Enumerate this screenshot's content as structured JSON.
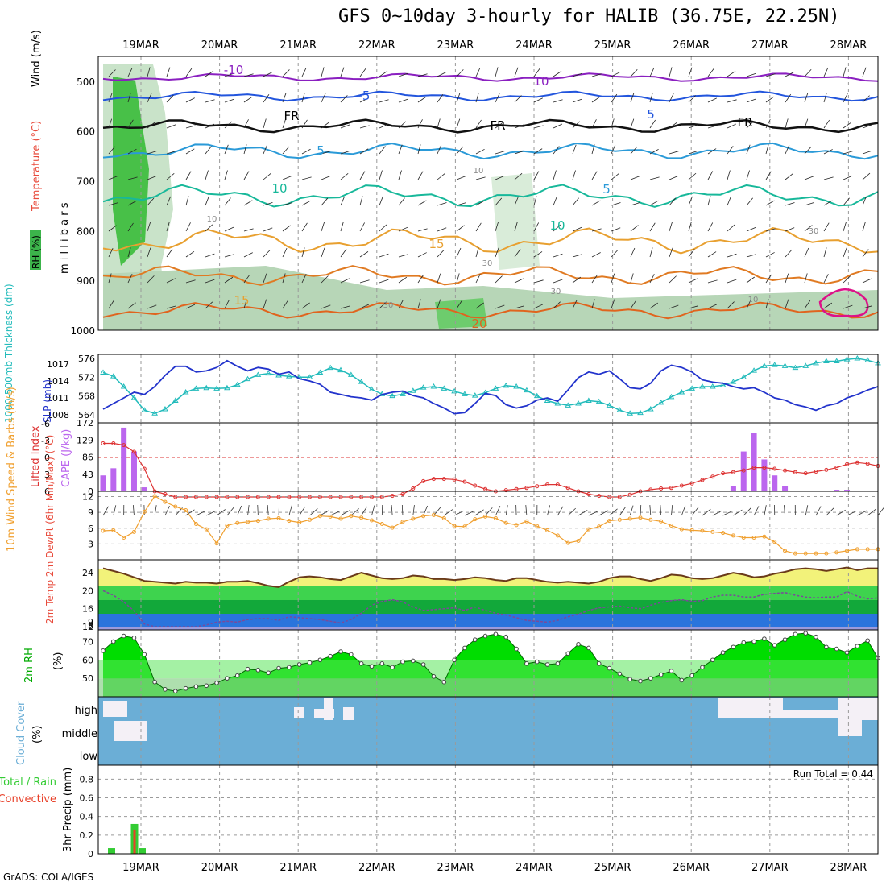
{
  "title": "GFS 0~10day 3-hourly for HALIB (36.75E, 22.25N)",
  "credit": "GrADS: COLA/IGES",
  "dates": [
    "19MAR",
    "20MAR",
    "21MAR",
    "22MAR",
    "23MAR",
    "24MAR",
    "25MAR",
    "26MAR",
    "27MAR",
    "28MAR"
  ],
  "colors": {
    "sounding_rh": "#3cb44b",
    "temp_labels": "#e84b3c",
    "thick_color": "#22bbbb",
    "slp_color": "#2233cc",
    "li_color": "#dd3333",
    "cape_color": "#bb66ee",
    "wind_color": "#f0a030",
    "rh_green": "#00dd00",
    "cloud_blue": "#6baed6",
    "precip_green": "#33cc33",
    "precip_red": "#e8412a"
  },
  "chart_data": [
    {
      "type": "contour",
      "panel": "upper-air",
      "ylabel": "millibars",
      "legend_text": {
        "rh": "RH (%)",
        "temp": "Temperature (°C)",
        "wind": "Wind (m/s)"
      },
      "yticks": [
        500,
        600,
        700,
        800,
        900,
        1000
      ],
      "ylim": [
        1000,
        450
      ],
      "temperature_labels": [
        "-10",
        "10",
        "-5",
        "5",
        "FR",
        "FR",
        "FR",
        "5",
        "5",
        "10",
        "10",
        "15",
        "15",
        "20"
      ],
      "rh_labels": [
        "10",
        "10",
        "30",
        "30",
        "30",
        "30",
        "10"
      ]
    },
    {
      "type": "line",
      "panel": "thickness-slp",
      "ylabel_left": "1000-500mb Thickness (dm)",
      "ylabel_right": "SLP (mb)",
      "yticks_left": [
        564,
        568,
        572,
        576
      ],
      "yticks_right": [
        1008,
        1011,
        1014,
        1017
      ],
      "series": [
        {
          "name": "1000-500mb Thickness (dm)",
          "values": [
            573.0,
            572.2,
            570.0,
            567.6,
            565.0,
            564.3,
            565.2,
            567.0,
            568.8,
            569.6,
            569.7,
            569.6,
            569.7,
            570.4,
            571.6,
            572.5,
            572.8,
            572.4,
            572.2,
            572.0,
            572.0,
            573.0,
            574.0,
            573.5,
            572.5,
            571.0,
            569.4,
            568.4,
            568.0,
            568.4,
            569.1,
            569.8,
            570.0,
            569.6,
            569.0,
            568.4,
            568.1,
            568.7,
            569.6,
            570.2,
            570.0,
            569.2,
            568.0,
            567.0,
            566.4,
            566.0,
            566.4,
            567.0,
            566.8,
            566.0,
            565.0,
            564.3,
            564.4,
            565.2,
            566.6,
            567.8,
            568.8,
            569.6,
            570.0,
            570.0,
            570.3,
            571.0,
            572.0,
            573.4,
            574.4,
            574.6,
            574.4,
            574.0,
            574.4,
            575.0,
            575.4,
            575.4,
            575.8,
            576.0,
            575.6,
            575.0
          ]
        },
        {
          "name": "SLP (mb)",
          "values": [
            1009.0,
            1010.0,
            1011.0,
            1012.0,
            1011.6,
            1013.0,
            1015.0,
            1016.6,
            1016.6,
            1015.6,
            1015.8,
            1016.4,
            1017.6,
            1016.6,
            1015.8,
            1016.4,
            1016.1,
            1015.2,
            1015.6,
            1014.4,
            1014.0,
            1013.4,
            1012.0,
            1011.6,
            1011.2,
            1011.0,
            1010.6,
            1011.6,
            1012.0,
            1012.2,
            1011.4,
            1011.0,
            1010.0,
            1009.2,
            1008.2,
            1008.4,
            1010.0,
            1011.8,
            1011.4,
            1009.8,
            1009.2,
            1009.6,
            1010.6,
            1011.0,
            1010.4,
            1012.4,
            1014.6,
            1015.6,
            1015.2,
            1015.8,
            1014.4,
            1012.8,
            1012.6,
            1013.6,
            1015.8,
            1016.8,
            1016.4,
            1015.6,
            1014.2,
            1013.8,
            1013.6,
            1013.0,
            1012.6,
            1012.8,
            1012.0,
            1011.0,
            1010.6,
            1009.8,
            1009.4,
            1008.8,
            1009.6,
            1010.0,
            1011.0,
            1011.6,
            1012.4,
            1013.0
          ]
        }
      ]
    },
    {
      "type": "bar-line",
      "panel": "cape-lifted-index",
      "ylabel_left": "Lifted Index",
      "ylabel_right": "CAPE (J/kg)",
      "yticks_left": [
        -6,
        -3,
        0,
        3,
        6
      ],
      "yticks_right": [
        0,
        43,
        86,
        129,
        172
      ],
      "cape": [
        40,
        58,
        160,
        100,
        10,
        0,
        0,
        0,
        0,
        0,
        0,
        0,
        0,
        0,
        0,
        0,
        0,
        0,
        0,
        0,
        0,
        0,
        0,
        0,
        0,
        0,
        0,
        0,
        0,
        0,
        0,
        0,
        0,
        0,
        0,
        0,
        0,
        0,
        0,
        0,
        0,
        0,
        0,
        0,
        0,
        0,
        0,
        0,
        0,
        0,
        0,
        0,
        0,
        0,
        0,
        0,
        0,
        0,
        0,
        0,
        0,
        14,
        100,
        146,
        80,
        40,
        14,
        0,
        0,
        0,
        0,
        4,
        4,
        0,
        0,
        0
      ],
      "lifted_index": [
        -2.5,
        -2.5,
        -2.2,
        -1.0,
        2.0,
        6.0,
        6.5,
        7.0,
        7.0,
        7.0,
        7.0,
        7.0,
        7.0,
        7.0,
        7.0,
        7.0,
        7.0,
        7.0,
        7.0,
        7.0,
        7.0,
        7.0,
        7.0,
        7.0,
        7.0,
        7.0,
        7.0,
        7.0,
        6.8,
        6.5,
        5.5,
        4.2,
        3.8,
        3.8,
        3.9,
        4.3,
        5.0,
        5.6,
        6.0,
        5.8,
        5.6,
        5.4,
        5.1,
        4.8,
        4.8,
        5.4,
        6.0,
        6.5,
        6.8,
        7.0,
        7.0,
        6.6,
        6.0,
        5.7,
        5.5,
        5.4,
        5.0,
        4.6,
        4.0,
        3.4,
        2.8,
        2.6,
        2.3,
        1.8,
        1.8,
        2.0,
        2.3,
        2.6,
        2.8,
        2.5,
        2.2,
        1.8,
        1.2,
        0.9,
        1.1,
        1.5
      ]
    },
    {
      "type": "line",
      "panel": "10m-wind",
      "ylabel": "10m Wind Speed & Barbs (m/s)",
      "yticks": [
        3,
        6,
        9,
        12
      ],
      "series": [
        {
          "name": "10m Wind Speed",
          "values": [
            5.5,
            5.6,
            4.2,
            5.3,
            9.1,
            12.1,
            11.0,
            10.1,
            9.4,
            6.8,
            5.8,
            3.1,
            6.5,
            7.0,
            7.2,
            7.4,
            7.8,
            7.9,
            7.4,
            7.1,
            7.6,
            8.3,
            8.2,
            7.8,
            8.3,
            8.0,
            7.5,
            6.8,
            6.1,
            7.2,
            7.8,
            8.3,
            8.5,
            7.9,
            6.4,
            6.3,
            7.7,
            8.2,
            7.9,
            7.0,
            6.6,
            7.3,
            6.4,
            5.6,
            4.6,
            3.2,
            3.6,
            5.8,
            6.3,
            7.4,
            7.6,
            7.8,
            8.0,
            7.6,
            7.3,
            6.5,
            5.8,
            5.6,
            5.5,
            5.3,
            5.1,
            4.6,
            4.2,
            4.2,
            4.4,
            3.4,
            1.7,
            1.2,
            1.2,
            1.2,
            1.2,
            1.4,
            1.7,
            2.0,
            2.0,
            2.0
          ]
        }
      ]
    },
    {
      "type": "line",
      "panel": "2m-temp",
      "ylabel": "2m Temp 2m DewPt (6hr Min/Max) (°C)",
      "yticks": [
        8,
        9,
        12,
        16,
        20,
        24
      ],
      "series": [
        {
          "name": "2m Temp",
          "values": [
            25.0,
            24.4,
            23.8,
            23.0,
            22.2,
            22.0,
            21.8,
            21.6,
            22.0,
            21.8,
            21.8,
            21.6,
            22.0,
            22.0,
            22.2,
            21.7,
            21.1,
            20.8,
            22.0,
            23.0,
            23.2,
            23.0,
            22.6,
            22.4,
            23.2,
            24.0,
            23.4,
            22.8,
            22.6,
            22.8,
            23.4,
            23.2,
            22.6,
            22.6,
            22.4,
            22.6,
            23.0,
            22.8,
            22.4,
            22.2,
            22.8,
            22.8,
            22.4,
            22.0,
            21.8,
            22.0,
            21.8,
            21.6,
            22.0,
            22.8,
            23.2,
            23.2,
            22.6,
            22.2,
            22.8,
            23.6,
            23.4,
            22.8,
            22.6,
            22.8,
            23.4,
            24.0,
            23.6,
            23.0,
            23.2,
            23.8,
            24.2,
            24.8,
            25.0,
            24.8,
            24.4,
            24.8,
            25.2,
            24.6,
            25.0,
            25.0
          ]
        },
        {
          "name": "2m DewPt",
          "values": [
            20.0,
            19.0,
            17.5,
            15.5,
            12.6,
            11.5,
            11.2,
            11.0,
            11.6,
            12.0,
            12.4,
            13.0,
            13.2,
            13.0,
            13.6,
            13.8,
            13.8,
            13.4,
            14.2,
            14.0,
            13.8,
            13.6,
            13.2,
            12.8,
            13.6,
            15.0,
            16.8,
            17.6,
            18.0,
            17.5,
            16.4,
            15.6,
            15.8,
            16.0,
            16.2,
            15.6,
            16.4,
            15.6,
            15.0,
            14.6,
            14.0,
            13.4,
            13.2,
            13.0,
            13.4,
            14.2,
            14.8,
            15.6,
            16.2,
            16.4,
            16.6,
            16.2,
            16.0,
            16.8,
            17.4,
            17.8,
            18.0,
            17.6,
            17.8,
            18.6,
            19.0,
            19.0,
            18.6,
            18.6,
            19.2,
            19.4,
            19.6,
            19.0,
            18.6,
            18.4,
            18.6,
            18.6,
            19.8,
            18.8,
            18.2,
            18.4
          ]
        }
      ]
    },
    {
      "type": "area",
      "panel": "2m-rh",
      "ylabel": "2m RH (%)",
      "yticks": [
        50,
        60,
        70
      ],
      "series": [
        {
          "name": "2m RH",
          "values": [
            65.0,
            70.0,
            73.0,
            72.0,
            63.0,
            48.0,
            44.0,
            43.0,
            44.5,
            45.5,
            46.0,
            47.5,
            50.0,
            51.5,
            55.0,
            54.5,
            53.0,
            55.5,
            56.0,
            57.5,
            58.5,
            60.0,
            62.0,
            64.5,
            63.0,
            58.0,
            56.5,
            58.0,
            56.0,
            59.0,
            59.5,
            57.5,
            51.0,
            48.0,
            60.0,
            66.5,
            71.0,
            73.0,
            74.0,
            72.5,
            66.0,
            58.0,
            59.0,
            57.5,
            58.0,
            63.5,
            68.5,
            66.5,
            58.0,
            55.5,
            52.5,
            49.5,
            48.5,
            50.0,
            52.0,
            54.0,
            49.0,
            51.5,
            56.0,
            60.0,
            64.0,
            67.0,
            69.5,
            70.0,
            71.5,
            68.0,
            71.0,
            74.0,
            74.5,
            72.5,
            67.0,
            66.0,
            64.0,
            67.5,
            70.5,
            61.0
          ]
        }
      ]
    },
    {
      "type": "heatmap",
      "panel": "cloud-cover",
      "ylabel": "Cloud Cover (%)",
      "rows": [
        "high",
        "middle",
        "low"
      ]
    },
    {
      "type": "bar",
      "panel": "precip",
      "ylabel": "3hr Precip (mm)",
      "legend": [
        "Total / Rain",
        "Convective"
      ],
      "annotation": "Run Total = 0.44",
      "yticks": [
        0,
        0.2,
        0.4,
        0.6,
        0.8
      ],
      "bars": [
        {
          "date_index": 0,
          "offset": 0,
          "total": 0.06,
          "convective": 0.0
        },
        {
          "date_index": 0,
          "offset": 3,
          "total": 0.32,
          "convective": 0.26
        },
        {
          "date_index": 0,
          "offset": 4,
          "total": 0.06,
          "convective": 0.0
        }
      ]
    }
  ]
}
